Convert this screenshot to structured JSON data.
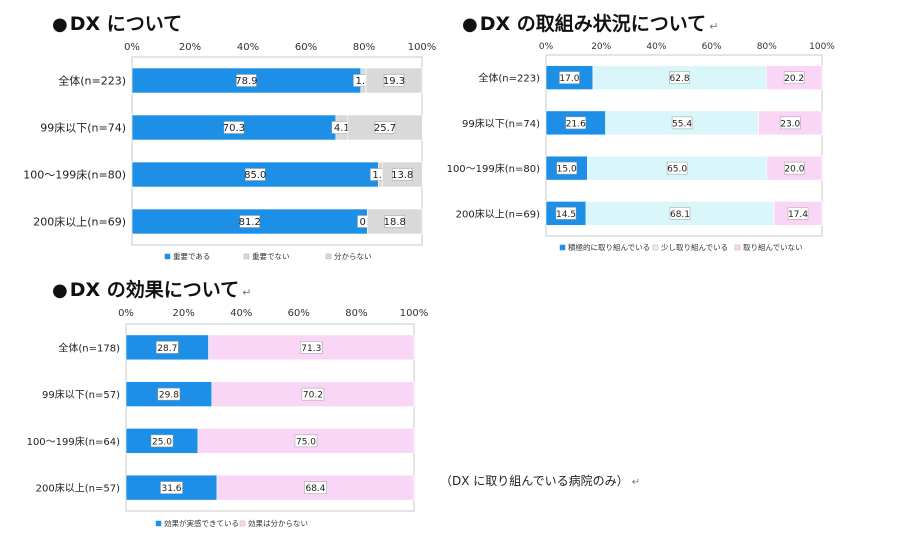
{
  "titles": {
    "chart1": "DX について",
    "chart2": "DX の取組み状況について",
    "chart3": "DX の効果について",
    "bullet": "●",
    "return_mark": "↵"
  },
  "note": "（DX に取り組んでいる病院のみ）",
  "colors": {
    "blue": "#1E8FE6",
    "light_blue": "#D9F6FB",
    "gray": "#D9D9D9",
    "pink": "#F9D6F5",
    "plot_border": "#C8C8C8"
  },
  "chart_data": [
    {
      "type": "bar",
      "orientation": "horizontal",
      "stacked": "percent",
      "title": "DX について",
      "categories": [
        "全体(n=223)",
        "99床以下(n=74)",
        "100～199床(n=80)",
        "200床以上(n=69)"
      ],
      "series": [
        {
          "name": "重要である",
          "color": "#1E8FE6",
          "values": [
            78.9,
            70.3,
            85.0,
            81.2
          ]
        },
        {
          "name": "重要でない",
          "color": "#D9D9D9",
          "values": [
            1.8,
            4.1,
            1.3,
            0.0
          ]
        },
        {
          "name": "分からない",
          "color": "#D9D9D9",
          "values": [
            19.3,
            25.7,
            13.8,
            18.8
          ]
        }
      ],
      "xlim": [
        0,
        100
      ],
      "xticks": [
        "0%",
        "20%",
        "40%",
        "60%",
        "80%",
        "100%"
      ],
      "legend_position": "bottom",
      "grid": false
    },
    {
      "type": "bar",
      "orientation": "horizontal",
      "stacked": "percent",
      "title": "DX の取組み状況について",
      "categories": [
        "全体(n=223)",
        "99床以下(n=74)",
        "100～199床(n=80)",
        "200床以上(n=69)"
      ],
      "series": [
        {
          "name": "積極的に取り組んでいる",
          "color": "#1E8FE6",
          "values": [
            17.0,
            21.6,
            15.0,
            14.5
          ]
        },
        {
          "name": "少し取り組んでいる",
          "color": "#D9F6FB",
          "values": [
            62.8,
            55.4,
            65.0,
            68.1
          ]
        },
        {
          "name": "取り組んでいない",
          "color": "#F9D6F5",
          "values": [
            20.2,
            23.0,
            20.0,
            17.4
          ]
        }
      ],
      "xlim": [
        0,
        100
      ],
      "xticks": [
        "0%",
        "20%",
        "40%",
        "60%",
        "80%",
        "100%"
      ],
      "legend_position": "bottom",
      "grid": false
    },
    {
      "type": "bar",
      "orientation": "horizontal",
      "stacked": "percent",
      "title": "DX の効果について",
      "categories": [
        "全体(n=178)",
        "99床以下(n=57)",
        "100～199床(n=64)",
        "200床以上(n=57)"
      ],
      "series": [
        {
          "name": "効果が実感できている",
          "color": "#1E8FE6",
          "values": [
            28.7,
            29.8,
            25.0,
            31.6
          ]
        },
        {
          "name": "効果は分からない",
          "color": "#F9D6F5",
          "values": [
            71.3,
            70.2,
            75.0,
            68.4
          ]
        }
      ],
      "xlim": [
        0,
        100
      ],
      "xticks": [
        "0%",
        "20%",
        "40%",
        "60%",
        "80%",
        "100%"
      ],
      "legend_position": "bottom",
      "grid": false
    }
  ]
}
